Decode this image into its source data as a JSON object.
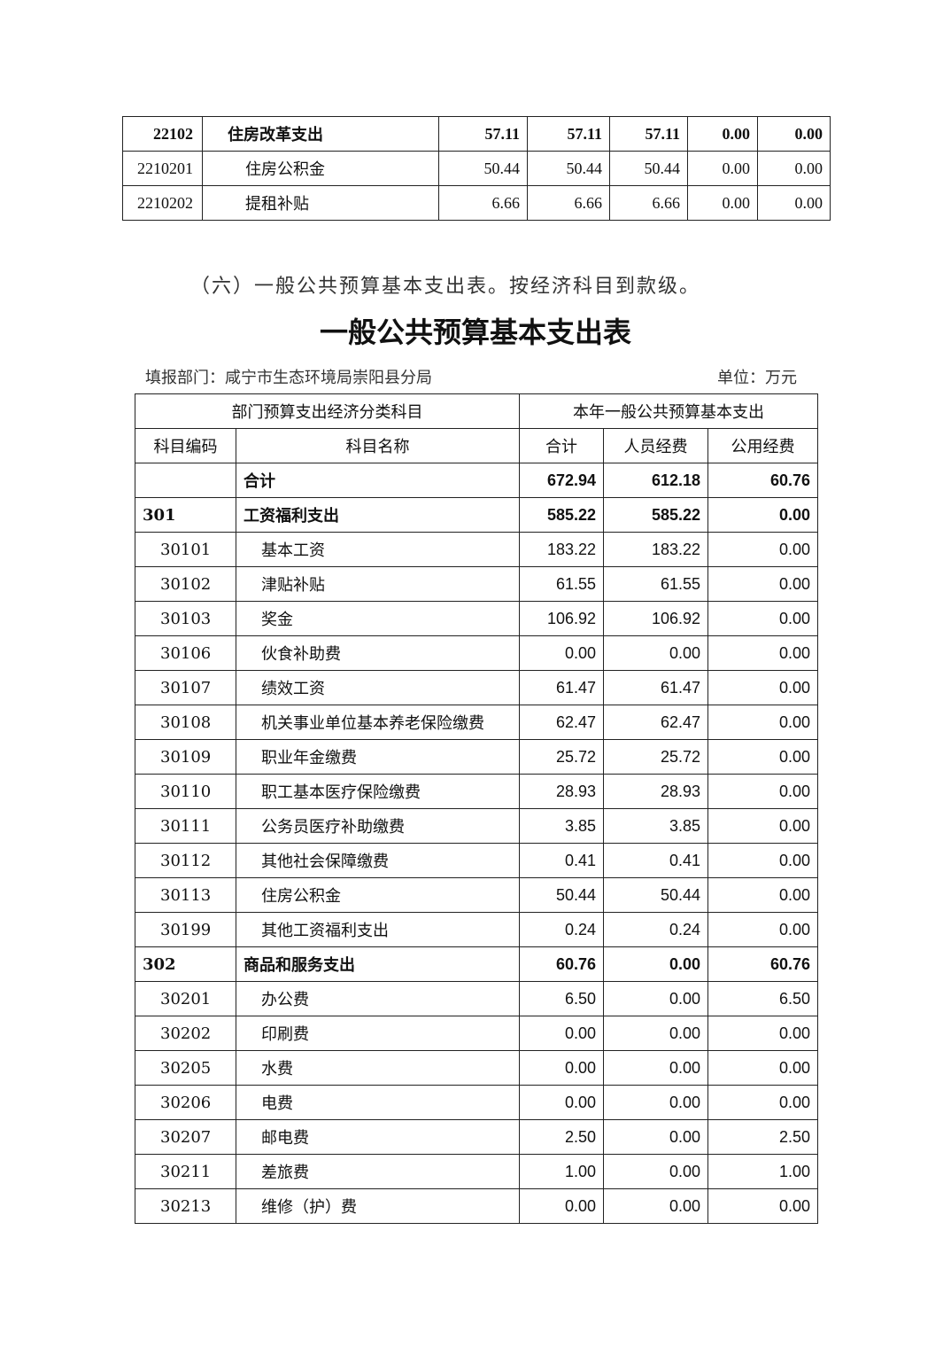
{
  "top_table": {
    "rows": [
      {
        "code": "22102",
        "name": "住房改革支出",
        "v": [
          "57.11",
          "57.11",
          "57.11",
          "0.00",
          "0.00"
        ],
        "bold": true
      },
      {
        "code": "2210201",
        "name": "住房公积金",
        "v": [
          "50.44",
          "50.44",
          "50.44",
          "0.00",
          "0.00"
        ],
        "bold": false
      },
      {
        "code": "2210202",
        "name": "提租补贴",
        "v": [
          "6.66",
          "6.66",
          "6.66",
          "0.00",
          "0.00"
        ],
        "bold": false
      }
    ]
  },
  "section_heading": "（六）一般公共预算基本支出表。按经济科目到款级。",
  "table_title": "一般公共预算基本支出表",
  "department": "填报部门：咸宁市生态环境局崇阳县分局",
  "unit": "单位：万元",
  "main_table": {
    "group_header_left": "部门预算支出经济分类科目",
    "group_header_right": "本年一般公共预算基本支出",
    "headers": [
      "科目编码",
      "科目名称",
      "合计",
      "人员经费",
      "公用经费"
    ],
    "rows": [
      {
        "code": "",
        "name": "合计",
        "v": [
          "672.94",
          "612.18",
          "60.76"
        ],
        "bold": true
      },
      {
        "code": "301",
        "name": "工资福利支出",
        "v": [
          "585.22",
          "585.22",
          "0.00"
        ],
        "bold": true
      },
      {
        "code": "30101",
        "name": "基本工资",
        "v": [
          "183.22",
          "183.22",
          "0.00"
        ]
      },
      {
        "code": "30102",
        "name": "津贴补贴",
        "v": [
          "61.55",
          "61.55",
          "0.00"
        ]
      },
      {
        "code": "30103",
        "name": "奖金",
        "v": [
          "106.92",
          "106.92",
          "0.00"
        ]
      },
      {
        "code": "30106",
        "name": "伙食补助费",
        "v": [
          "0.00",
          "0.00",
          "0.00"
        ]
      },
      {
        "code": "30107",
        "name": "绩效工资",
        "v": [
          "61.47",
          "61.47",
          "0.00"
        ]
      },
      {
        "code": "30108",
        "name": "机关事业单位基本养老保险缴费",
        "v": [
          "62.47",
          "62.47",
          "0.00"
        ]
      },
      {
        "code": "30109",
        "name": "职业年金缴费",
        "v": [
          "25.72",
          "25.72",
          "0.00"
        ]
      },
      {
        "code": "30110",
        "name": "职工基本医疗保险缴费",
        "v": [
          "28.93",
          "28.93",
          "0.00"
        ]
      },
      {
        "code": "30111",
        "name": "公务员医疗补助缴费",
        "v": [
          "3.85",
          "3.85",
          "0.00"
        ]
      },
      {
        "code": "30112",
        "name": "其他社会保障缴费",
        "v": [
          "0.41",
          "0.41",
          "0.00"
        ]
      },
      {
        "code": "30113",
        "name": "住房公积金",
        "v": [
          "50.44",
          "50.44",
          "0.00"
        ]
      },
      {
        "code": "30199",
        "name": "其他工资福利支出",
        "v": [
          "0.24",
          "0.24",
          "0.00"
        ]
      },
      {
        "code": "302",
        "name": "商品和服务支出",
        "v": [
          "60.76",
          "0.00",
          "60.76"
        ],
        "bold": true
      },
      {
        "code": "30201",
        "name": "办公费",
        "v": [
          "6.50",
          "0.00",
          "6.50"
        ]
      },
      {
        "code": "30202",
        "name": "印刷费",
        "v": [
          "0.00",
          "0.00",
          "0.00"
        ]
      },
      {
        "code": "30205",
        "name": "水费",
        "v": [
          "0.00",
          "0.00",
          "0.00"
        ]
      },
      {
        "code": "30206",
        "name": "电费",
        "v": [
          "0.00",
          "0.00",
          "0.00"
        ]
      },
      {
        "code": "30207",
        "name": "邮电费",
        "v": [
          "2.50",
          "0.00",
          "2.50"
        ]
      },
      {
        "code": "30211",
        "name": "差旅费",
        "v": [
          "1.00",
          "0.00",
          "1.00"
        ]
      },
      {
        "code": "30213",
        "name": "维修（护）费",
        "v": [
          "0.00",
          "0.00",
          "0.00"
        ]
      }
    ]
  }
}
